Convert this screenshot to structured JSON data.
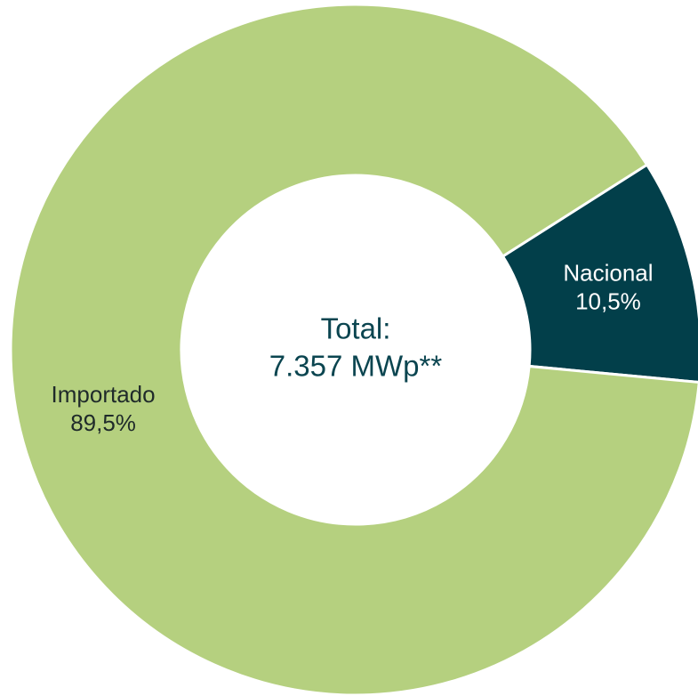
{
  "chart_data": {
    "type": "donut",
    "categories": [
      "Nacional",
      "Importado"
    ],
    "values": [
      10.5,
      89.5
    ],
    "value_labels": [
      "10,5%",
      "89,5%"
    ],
    "colors": [
      "#023f4a",
      "#b5d07f"
    ],
    "label_colors": [
      "#ffffff",
      "#1f2a2a"
    ],
    "center_text": [
      "Total:",
      "7.357 MWp**"
    ]
  }
}
